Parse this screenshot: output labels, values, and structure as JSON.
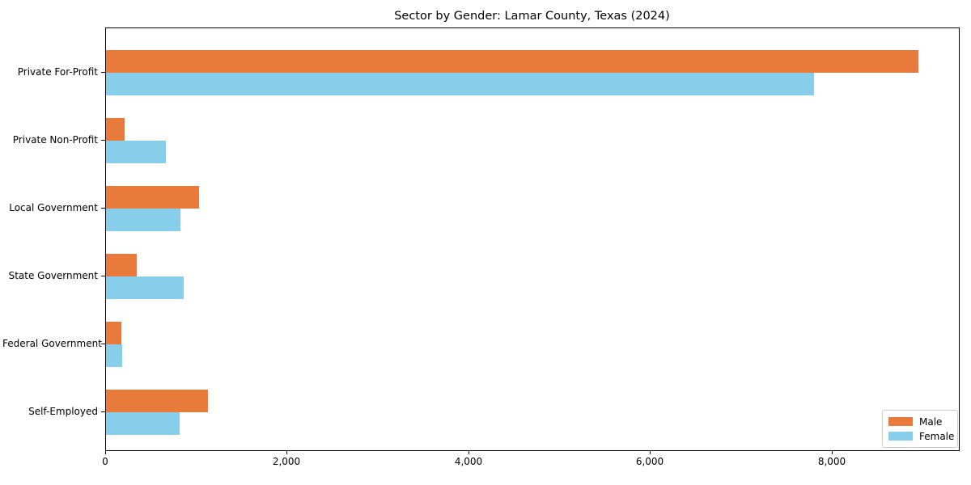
{
  "chart_data": {
    "type": "bar",
    "orientation": "horizontal",
    "title": "Sector by Gender: Lamar County, Texas (2024)",
    "xlabel": "",
    "ylabel": "",
    "categories": [
      "Private For-Profit",
      "Private Non-Profit",
      "Local Government",
      "State Government",
      "Federal Government",
      "Self-Employed"
    ],
    "series": [
      {
        "name": "Male",
        "color": "#e87a3c",
        "values": [
          8950,
          205,
          1025,
          340,
          170,
          1125
        ]
      },
      {
        "name": "Female",
        "color": "#87ceeb",
        "values": [
          7800,
          660,
          820,
          855,
          180,
          810
        ]
      }
    ],
    "xlim": [
      0,
      9400
    ],
    "xticks": {
      "values": [
        0,
        2000,
        4000,
        6000,
        8000
      ],
      "labels": [
        "0",
        "2,000",
        "4,000",
        "6,000",
        "8,000"
      ]
    },
    "legend": {
      "position": "lower right",
      "entries": [
        "Male",
        "Female"
      ]
    },
    "grid": false,
    "colors": {
      "background": "#ffffff",
      "axis": "#000000",
      "legend_border": "#cccccc"
    }
  }
}
